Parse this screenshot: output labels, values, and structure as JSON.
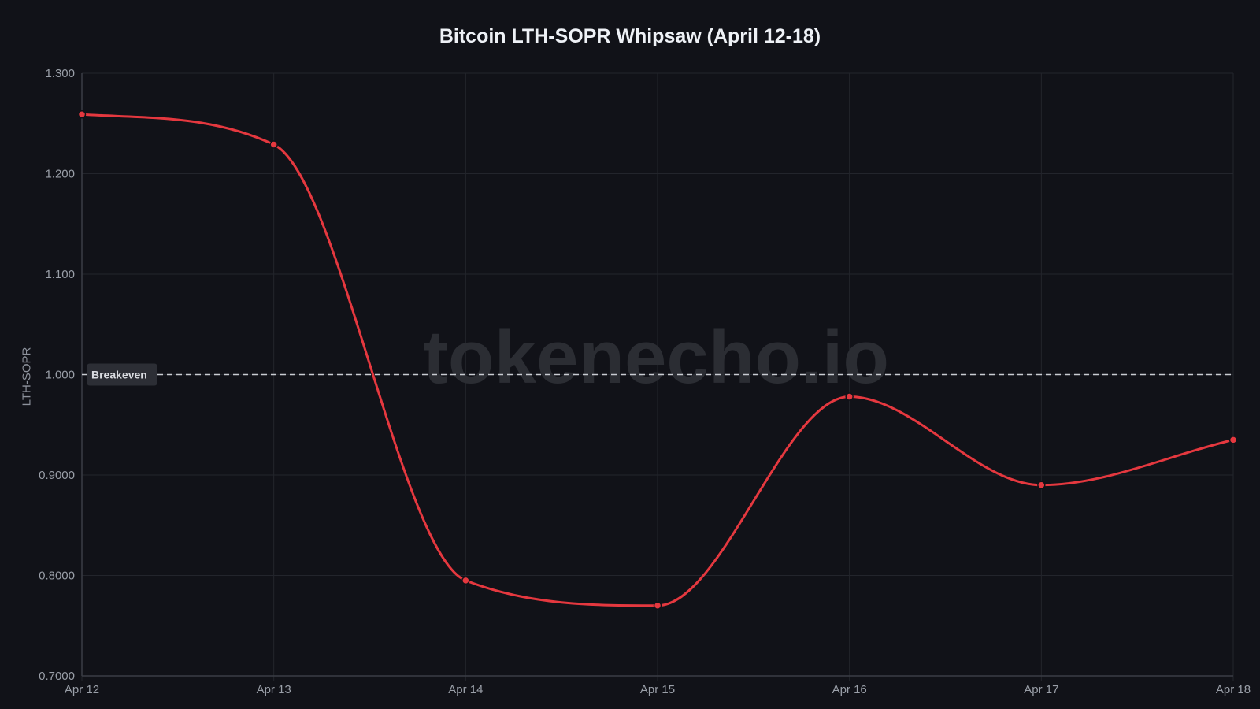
{
  "chart_data": {
    "type": "line",
    "title": "Bitcoin LTH-SOPR Whipsaw (April 12-18)",
    "xlabel": "",
    "ylabel": "LTH-SOPR",
    "categories": [
      "Apr 12",
      "Apr 13",
      "Apr 14",
      "Apr 15",
      "Apr 16",
      "Apr 17",
      "Apr 18"
    ],
    "series": [
      {
        "name": "LTH-SOPR",
        "color": "#e5383f",
        "values": [
          1.259,
          1.229,
          0.795,
          0.77,
          0.978,
          0.89,
          0.935
        ]
      }
    ],
    "ylim": [
      0.7,
      1.3
    ],
    "yticks": [
      {
        "value": 1.3,
        "label": "1.300"
      },
      {
        "value": 1.2,
        "label": "1.200"
      },
      {
        "value": 1.1,
        "label": "1.100"
      },
      {
        "value": 1.0,
        "label": "1.000"
      },
      {
        "value": 0.9,
        "label": "0.9000"
      },
      {
        "value": 0.8,
        "label": "0.8000"
      },
      {
        "value": 0.7,
        "label": "0.7000"
      }
    ],
    "grid": true,
    "annotations": [
      {
        "type": "hline",
        "value": 1.0,
        "style": "dashed",
        "label": "Breakeven",
        "color": "#c9ccd2"
      }
    ],
    "watermark": "tokenecho.io"
  },
  "colors": {
    "background": "#111218",
    "grid": "#23252c",
    "axis": "#3a3d45",
    "tick_text": "#9a9fa8",
    "title": "#eef1f6",
    "line": "#e5383f",
    "watermark": "#2b2d33"
  }
}
